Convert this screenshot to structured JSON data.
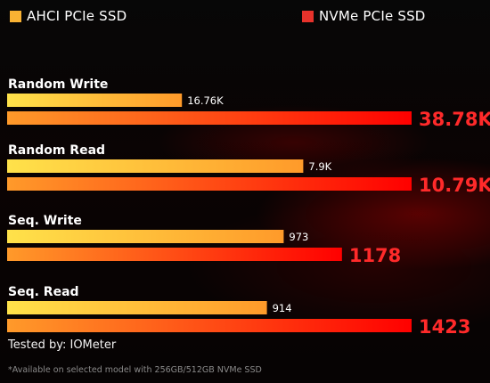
{
  "colors": {
    "ahci_start": "#ffe24a",
    "ahci_end": "#ff9a2a",
    "nvme_start": "#ff9a2a",
    "nvme_end": "#ff0000",
    "nvme_label": "#ff2a2a",
    "ahci_swatch": "#f9b233",
    "nvme_swatch": "#e8322b"
  },
  "chart_data": {
    "type": "bar",
    "orientation": "horizontal",
    "legend_position": "top",
    "grid": false,
    "series": [
      {
        "name": "AHCI PCIe SSD",
        "values": [
          16760,
          7900,
          973,
          914
        ],
        "labels": [
          "16.76K",
          "7.9K",
          "973",
          "914"
        ]
      },
      {
        "name": "NVMe PCIe SSD",
        "values": [
          38780,
          10790,
          1178,
          1423
        ],
        "labels": [
          "38.78K",
          "10.79K",
          "1178",
          "1423"
        ]
      }
    ],
    "groups": [
      {
        "category": "Random Write",
        "max_value": 38780
      },
      {
        "category": "Random Read",
        "max_value": 10790
      },
      {
        "category": "Seq. Write",
        "max_value": 1423
      },
      {
        "category": "Seq. Read",
        "max_value": 1423
      }
    ]
  },
  "footer": {
    "tested_by": "Tested by: IOMeter",
    "note": "*Available on selected model with 256GB/512GB NVMe SSD"
  }
}
